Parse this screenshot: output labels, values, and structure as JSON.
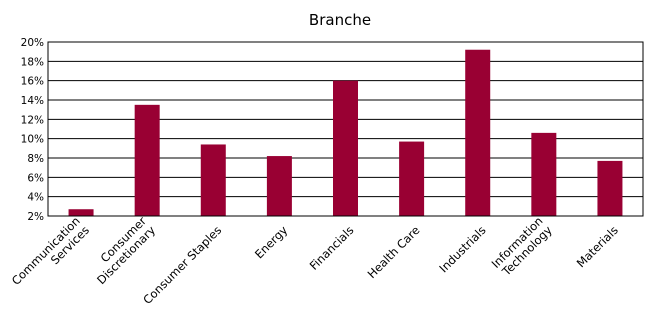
{
  "chart_data": {
    "type": "bar",
    "title": "Branche",
    "xlabel": "",
    "ylabel": "",
    "categories": [
      "Communication Services",
      "Consumer Discretionary",
      "Consumer Staples",
      "Energy",
      "Financials",
      "Health Care",
      "Industrials",
      "Information Technology",
      "Materials"
    ],
    "category_lines": [
      [
        "Communication",
        "Services"
      ],
      [
        "Consumer",
        "Discretionary"
      ],
      [
        "Consumer Staples"
      ],
      [
        "Energy"
      ],
      [
        "Financials"
      ],
      [
        "Health Care"
      ],
      [
        "Industrials"
      ],
      [
        "Information",
        "Technology"
      ],
      [
        "Materials"
      ]
    ],
    "values": [
      2.7,
      13.5,
      9.4,
      8.2,
      16.0,
      9.7,
      19.2,
      10.6,
      7.7
    ],
    "ylim": [
      2,
      20
    ],
    "yticks": [
      2,
      4,
      6,
      8,
      10,
      12,
      14,
      16,
      18,
      20
    ],
    "ytick_labels": [
      "2%",
      "4%",
      "6%",
      "8%",
      "10%",
      "12%",
      "14%",
      "16%",
      "18%",
      "20%"
    ],
    "grid": "horizontal",
    "legend": "none",
    "bar_color": "#990033"
  }
}
